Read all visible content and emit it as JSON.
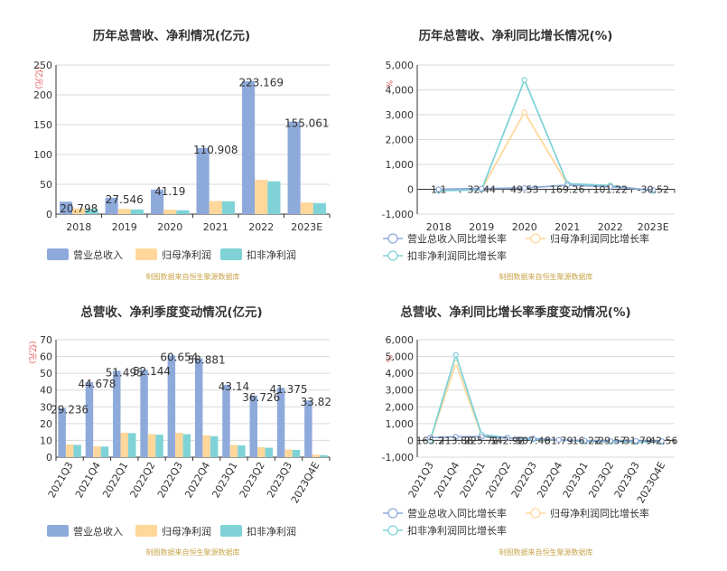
{
  "colors": {
    "revenue": "#8eaadb",
    "net_profit": "#ffd79b",
    "deducted_profit": "#7fd3d6",
    "grid": "#d9d9d9",
    "axis": "#333333",
    "unit": "#e05050",
    "source": "#c9a44a"
  },
  "source_note": "制图数据来自恒生聚源数据库",
  "chart_data": [
    {
      "type": "bar",
      "title": "历年总营收、净利情况(亿元)",
      "ylabel": "(亿元)",
      "ylim": [
        0,
        250
      ],
      "yticks": [
        "0",
        "50",
        "100",
        "150",
        "200",
        "250"
      ],
      "categories": [
        "2018",
        "2019",
        "2020",
        "2021",
        "2022",
        "2023E"
      ],
      "series": [
        {
          "name": "营业总收入",
          "values": [
            20.798,
            27.546,
            41.19,
            110.908,
            223.169,
            155.061
          ]
        },
        {
          "name": "归母净利润",
          "values": [
            9.5,
            8.8,
            7.5,
            22.0,
            57.5,
            19.5
          ]
        },
        {
          "name": "扣非净利润",
          "values": [
            8.5,
            7.9,
            6.5,
            21.5,
            55.0,
            18.5
          ]
        }
      ],
      "data_labels": [
        "20.798",
        "27.546",
        "41.19",
        "110.908",
        "223.169",
        "155.061"
      ],
      "legend": "bottom"
    },
    {
      "type": "line",
      "title": "历年总营收、净利同比增长情况(%)",
      "ylabel": "%",
      "ylim": [
        -1000,
        5000
      ],
      "yticks": [
        "-1,000",
        "0",
        "1,000",
        "2,000",
        "3,000",
        "4,000",
        "5,000"
      ],
      "categories": [
        "2018",
        "2019",
        "2020",
        "2021",
        "2022",
        "2023E"
      ],
      "series": [
        {
          "name": "营业总收入同比增长率",
          "values": [
            1.1,
            32.44,
            49.53,
            169.26,
            101.22,
            -30.52
          ]
        },
        {
          "name": "归母净利润同比增长率",
          "values": [
            -50,
            -10,
            3100,
            200,
            160,
            -65
          ]
        },
        {
          "name": "扣非净利润同比增长率",
          "values": [
            -60,
            -15,
            4400,
            230,
            150,
            -65
          ]
        }
      ],
      "data_labels": [
        "1.1",
        "32.44",
        "49.53",
        "169.26",
        "101.22",
        "-30.52"
      ],
      "legend": "bottom"
    },
    {
      "type": "bar",
      "title": "总营收、净利季度变动情况(亿元)",
      "ylabel": "(亿元)",
      "ylim": [
        0,
        70
      ],
      "yticks": [
        "0",
        "10",
        "20",
        "30",
        "40",
        "50",
        "60",
        "70"
      ],
      "categories": [
        "2021Q3",
        "2021Q4",
        "2022Q1",
        "2022Q2",
        "2022Q3",
        "2022Q4",
        "2023Q1",
        "2023Q2",
        "2023Q3",
        "2023Q4E"
      ],
      "series": [
        {
          "name": "营业总收入",
          "values": [
            29.236,
            44.678,
            51.495,
            52.144,
            60.654,
            58.881,
            43.14,
            36.726,
            41.375,
            33.82
          ]
        },
        {
          "name": "归母净利润",
          "values": [
            7.6,
            6.5,
            14.6,
            13.7,
            14.5,
            13.0,
            7.3,
            5.9,
            4.6,
            1.5
          ]
        },
        {
          "name": "扣非净利润",
          "values": [
            7.3,
            6.3,
            14.3,
            13.4,
            13.7,
            12.5,
            7.0,
            5.6,
            4.3,
            1.2
          ]
        }
      ],
      "data_labels": [
        "29.236",
        "44.678",
        "51.495",
        "52.144",
        "60.654",
        "58.881",
        "43.14",
        "36.726",
        "41.375",
        "33.82"
      ],
      "legend": "bottom"
    },
    {
      "type": "line",
      "title": "总营收、净利同比增长率季度变动情况(%)",
      "ylabel": "%",
      "ylim": [
        -1000,
        6000
      ],
      "yticks": [
        "-1,000",
        "0",
        "1,000",
        "2,000",
        "3,000",
        "4,000",
        "5,000",
        "6,000"
      ],
      "categories": [
        "2021Q3",
        "2021Q4",
        "2022Q1",
        "2022Q2",
        "2022Q3",
        "2022Q4",
        "2023Q1",
        "2023Q2",
        "2023Q3",
        "2023Q4E"
      ],
      "series": [
        {
          "name": "营业总收入同比增长率",
          "values": [
            165.2,
            213.88,
            225.71,
            142.92,
            107.46,
            31.79,
            -16.22,
            -29.57,
            -31.79,
            -42.56
          ]
        },
        {
          "name": "归母净利润同比增长率",
          "values": [
            -20,
            4600,
            300,
            150,
            60,
            40,
            -60,
            -80,
            -90,
            -100
          ]
        },
        {
          "name": "扣非净利润同比增长率",
          "values": [
            -30,
            5100,
            350,
            160,
            50,
            30,
            -60,
            -80,
            -90,
            -100
          ]
        }
      ],
      "data_labels": [
        "165.2",
        "213.88",
        "225.71",
        "142.92",
        "107.46",
        "31.79",
        "-16.22",
        "-29.57",
        "-31.79",
        "-42.56"
      ],
      "legend": "bottom"
    }
  ]
}
